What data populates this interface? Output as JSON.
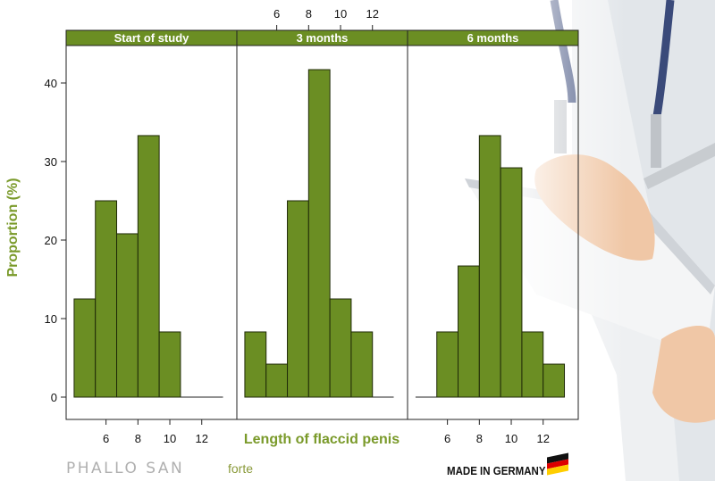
{
  "colors": {
    "bar": "#6b8e23",
    "bar_stroke": "#1f2a08",
    "strip": "#6b8e23",
    "label": "#7a9a2a"
  },
  "chart_data": {
    "type": "bar",
    "panels": [
      {
        "title": "Start of study",
        "values": [
          12.5,
          25,
          20.8,
          33.3,
          8.3,
          0,
          0
        ]
      },
      {
        "title": "3 months",
        "values": [
          8.3,
          4.2,
          25,
          41.7,
          12.5,
          8.3,
          0
        ]
      },
      {
        "title": "6 months",
        "values": [
          0,
          8.3,
          16.7,
          33.3,
          29.2,
          8.3,
          4.2
        ]
      }
    ],
    "bin_edges": [
      4,
      5.333,
      6.667,
      8,
      9.333,
      10.667,
      12,
      13.333
    ],
    "xlim": [
      3.5,
      14.2
    ],
    "ylim": [
      -3,
      45
    ],
    "x_ticks": [
      6,
      8,
      10,
      12
    ],
    "y_ticks": [
      0,
      10,
      20,
      30,
      40
    ],
    "xlabel": "Length of flaccid penis",
    "ylabel": "Proportion (%)"
  },
  "footer": {
    "brand": "PHALLO SAN",
    "brand_sub": "forte",
    "made_in": "MADE IN GERMANY"
  },
  "icons": {
    "flag": "germany-flag-icon"
  }
}
